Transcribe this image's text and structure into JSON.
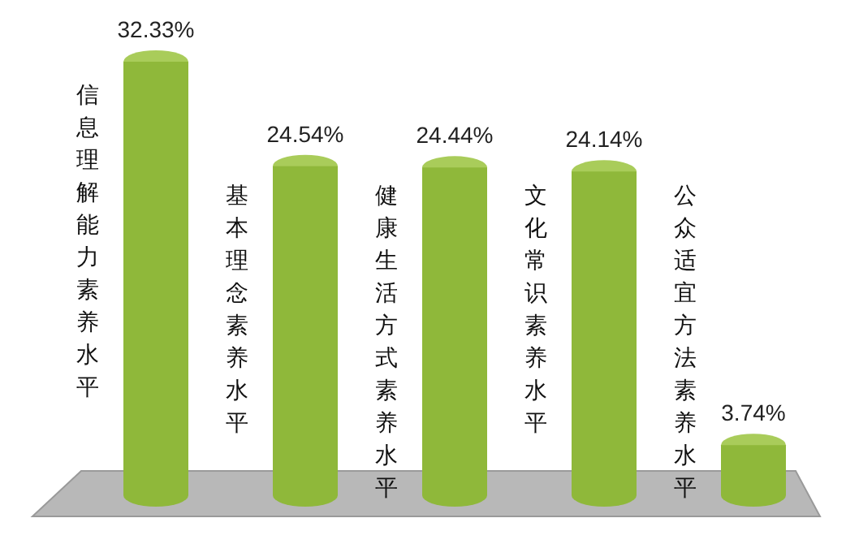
{
  "chart_data": {
    "type": "bar",
    "categories": [
      "信息理解能力素养水平",
      "基本理念素养水平",
      "健康生活方式素养水平",
      "文化常识素养水平",
      "公众适宜方法素养水平"
    ],
    "values": [
      32.33,
      24.54,
      24.44,
      24.14,
      3.74
    ],
    "value_labels": [
      "32.33%",
      "24.54%",
      "24.44%",
      "24.14%",
      "3.74%"
    ],
    "color": "#8fb83a"
  }
}
